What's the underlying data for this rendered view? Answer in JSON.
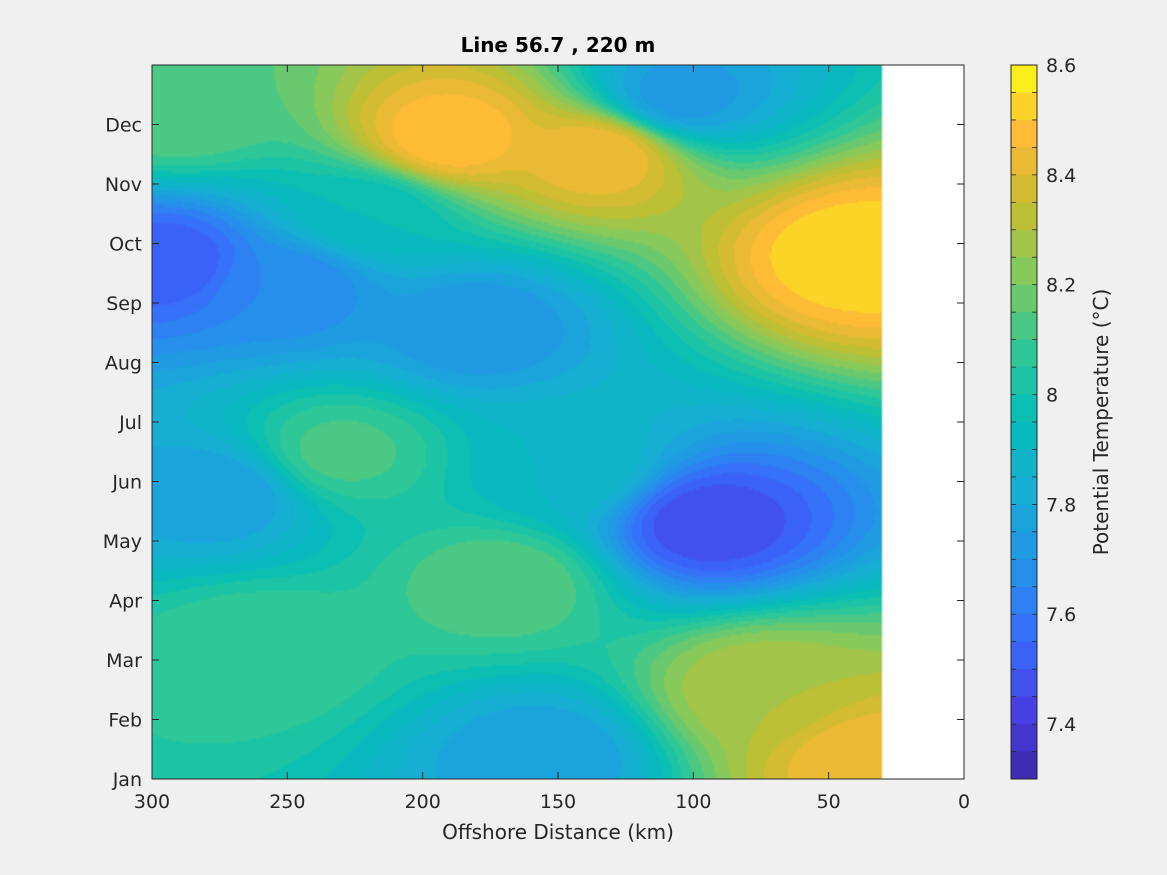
{
  "chart_data": {
    "type": "heatmap",
    "title": "Line 56.7 , 220 m",
    "xlabel": "Offshore Distance (km)",
    "ylabel": "",
    "xlim": [
      300,
      0
    ],
    "x_reversed": true,
    "xticks": [
      "300",
      "250",
      "200",
      "150",
      "100",
      "50",
      "0"
    ],
    "xtick_values": [
      300,
      250,
      200,
      150,
      100,
      50,
      0
    ],
    "yticks": [
      "Jan",
      "Feb",
      "Mar",
      "Apr",
      "May",
      "Jun",
      "Jul",
      "Aug",
      "Sep",
      "Oct",
      "Nov",
      "Dec"
    ],
    "data_extent_km": [
      30,
      300
    ],
    "colorbar": {
      "label": "Potential Temperature (°C)",
      "range": [
        7.3,
        8.6
      ],
      "ticks": [
        "7.4",
        "7.6",
        "7.8",
        "8",
        "8.2",
        "8.4",
        "8.6"
      ],
      "tick_values": [
        7.4,
        7.6,
        7.8,
        8.0,
        8.2,
        8.4,
        8.6
      ],
      "levels": 26,
      "colormap": "parula"
    },
    "features": [
      {
        "x": 190,
        "month": 10.8,
        "value": 8.5
      },
      {
        "x": 135,
        "month": 10.5,
        "value": 8.45
      },
      {
        "x": 40,
        "month": 8.8,
        "value": 8.55
      },
      {
        "x": 35,
        "month": 0.3,
        "value": 8.45
      },
      {
        "x": 75,
        "month": 1.5,
        "value": 8.3
      },
      {
        "x": 295,
        "month": 8.7,
        "value": 7.5
      },
      {
        "x": 250,
        "month": 8.3,
        "value": 7.65
      },
      {
        "x": 180,
        "month": 7.6,
        "value": 7.7
      },
      {
        "x": 95,
        "month": 4.3,
        "value": 7.45
      },
      {
        "x": 105,
        "month": 11.5,
        "value": 7.72
      },
      {
        "x": 170,
        "month": 3.3,
        "value": 8.15
      },
      {
        "x": 230,
        "month": 5.5,
        "value": 8.12
      },
      {
        "x": 260,
        "month": 2.2,
        "value": 8.1
      },
      {
        "x": 275,
        "month": 4.8,
        "value": 7.75
      },
      {
        "x": 290,
        "month": 11.2,
        "value": 8.15
      },
      {
        "x": 155,
        "month": 0.4,
        "value": 7.75
      },
      {
        "x": 145,
        "month": 5.2,
        "value": 7.9
      },
      {
        "x": 220,
        "month": 9.5,
        "value": 7.95
      }
    ]
  },
  "colors": {
    "background": "#f0f0f0",
    "plot_bg": "#ffffff"
  }
}
